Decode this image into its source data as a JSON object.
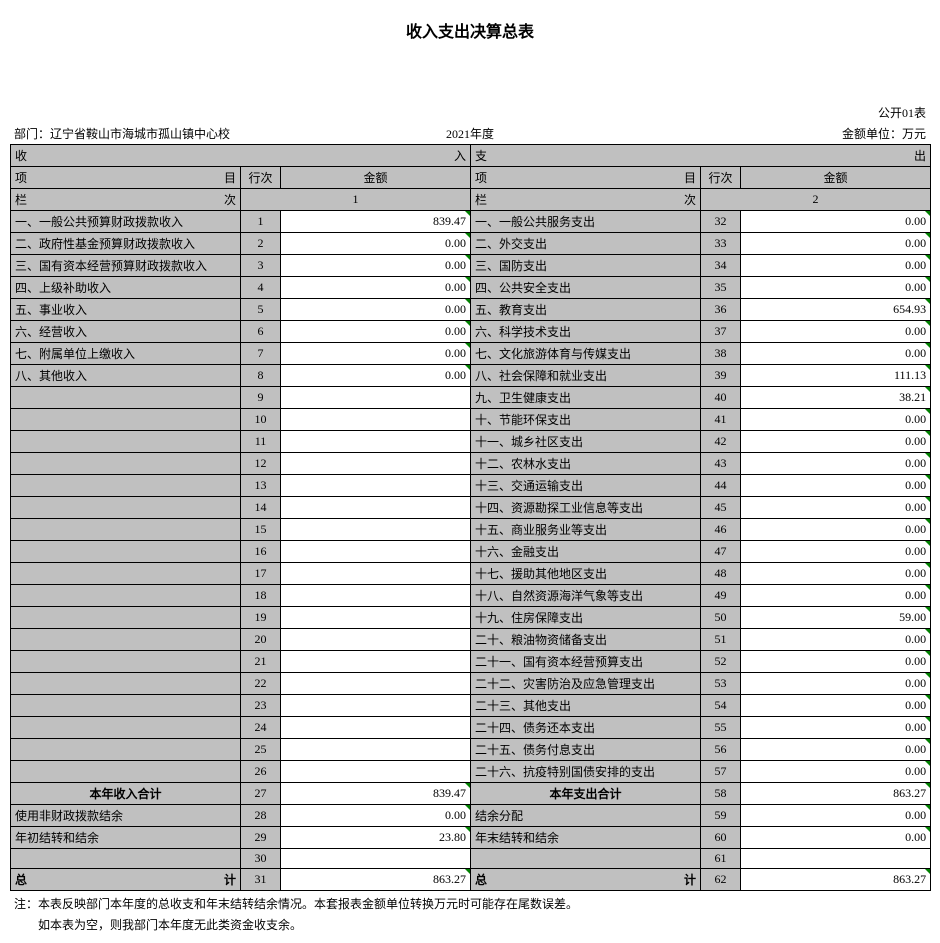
{
  "title": "收入支出决算总表",
  "meta": {
    "form_code": "公开01表",
    "dept_label": "部门：",
    "dept_name": "辽宁省鞍山市海城市孤山镇中心校",
    "year": "2021年度",
    "unit": "金额单位：万元"
  },
  "header": {
    "income_span": "收",
    "income_span_r": "入",
    "expense_span": "支",
    "expense_span_r": "出",
    "item": "项",
    "item_r": "目",
    "rownum": "行次",
    "amount": "金额",
    "col": "栏",
    "col_r": "次",
    "col_num_left": "1",
    "col_num_right": "2"
  },
  "income_rows": [
    {
      "label": "一、一般公共预算财政拨款收入",
      "n": "1",
      "v": "839.47"
    },
    {
      "label": "二、政府性基金预算财政拨款收入",
      "n": "2",
      "v": "0.00"
    },
    {
      "label": "三、国有资本经营预算财政拨款收入",
      "n": "3",
      "v": "0.00"
    },
    {
      "label": "四、上级补助收入",
      "n": "4",
      "v": "0.00"
    },
    {
      "label": "五、事业收入",
      "n": "5",
      "v": "0.00"
    },
    {
      "label": "六、经营收入",
      "n": "6",
      "v": "0.00"
    },
    {
      "label": "七、附属单位上缴收入",
      "n": "7",
      "v": "0.00"
    },
    {
      "label": "八、其他收入",
      "n": "8",
      "v": "0.00"
    },
    {
      "label": "",
      "n": "9",
      "v": ""
    },
    {
      "label": "",
      "n": "10",
      "v": ""
    },
    {
      "label": "",
      "n": "11",
      "v": ""
    },
    {
      "label": "",
      "n": "12",
      "v": ""
    },
    {
      "label": "",
      "n": "13",
      "v": ""
    },
    {
      "label": "",
      "n": "14",
      "v": ""
    },
    {
      "label": "",
      "n": "15",
      "v": ""
    },
    {
      "label": "",
      "n": "16",
      "v": ""
    },
    {
      "label": "",
      "n": "17",
      "v": ""
    },
    {
      "label": "",
      "n": "18",
      "v": ""
    },
    {
      "label": "",
      "n": "19",
      "v": ""
    },
    {
      "label": "",
      "n": "20",
      "v": ""
    },
    {
      "label": "",
      "n": "21",
      "v": ""
    },
    {
      "label": "",
      "n": "22",
      "v": ""
    },
    {
      "label": "",
      "n": "23",
      "v": ""
    },
    {
      "label": "",
      "n": "24",
      "v": ""
    },
    {
      "label": "",
      "n": "25",
      "v": ""
    },
    {
      "label": "",
      "n": "26",
      "v": ""
    }
  ],
  "expense_rows": [
    {
      "label": "一、一般公共服务支出",
      "n": "32",
      "v": "0.00"
    },
    {
      "label": "二、外交支出",
      "n": "33",
      "v": "0.00"
    },
    {
      "label": "三、国防支出",
      "n": "34",
      "v": "0.00"
    },
    {
      "label": "四、公共安全支出",
      "n": "35",
      "v": "0.00"
    },
    {
      "label": "五、教育支出",
      "n": "36",
      "v": "654.93"
    },
    {
      "label": "六、科学技术支出",
      "n": "37",
      "v": "0.00"
    },
    {
      "label": "七、文化旅游体育与传媒支出",
      "n": "38",
      "v": "0.00"
    },
    {
      "label": "八、社会保障和就业支出",
      "n": "39",
      "v": "111.13"
    },
    {
      "label": "九、卫生健康支出",
      "n": "40",
      "v": "38.21"
    },
    {
      "label": "十、节能环保支出",
      "n": "41",
      "v": "0.00"
    },
    {
      "label": "十一、城乡社区支出",
      "n": "42",
      "v": "0.00"
    },
    {
      "label": "十二、农林水支出",
      "n": "43",
      "v": "0.00"
    },
    {
      "label": "十三、交通运输支出",
      "n": "44",
      "v": "0.00"
    },
    {
      "label": "十四、资源勘探工业信息等支出",
      "n": "45",
      "v": "0.00"
    },
    {
      "label": "十五、商业服务业等支出",
      "n": "46",
      "v": "0.00"
    },
    {
      "label": "十六、金融支出",
      "n": "47",
      "v": "0.00"
    },
    {
      "label": "十七、援助其他地区支出",
      "n": "48",
      "v": "0.00"
    },
    {
      "label": "十八、自然资源海洋气象等支出",
      "n": "49",
      "v": "0.00"
    },
    {
      "label": "十九、住房保障支出",
      "n": "50",
      "v": "59.00"
    },
    {
      "label": "二十、粮油物资储备支出",
      "n": "51",
      "v": "0.00"
    },
    {
      "label": "二十一、国有资本经营预算支出",
      "n": "52",
      "v": "0.00"
    },
    {
      "label": "二十二、灾害防治及应急管理支出",
      "n": "53",
      "v": "0.00"
    },
    {
      "label": "二十三、其他支出",
      "n": "54",
      "v": "0.00"
    },
    {
      "label": "二十四、债务还本支出",
      "n": "55",
      "v": "0.00"
    },
    {
      "label": "二十五、债务付息支出",
      "n": "56",
      "v": "0.00"
    },
    {
      "label": "二十六、抗疫特别国债安排的支出",
      "n": "57",
      "v": "0.00"
    }
  ],
  "subtotal": {
    "income_label": "本年收入合计",
    "income_n": "27",
    "income_v": "839.47",
    "expense_label": "本年支出合计",
    "expense_n": "58",
    "expense_v": "863.27"
  },
  "extra_rows": [
    {
      "ll": "使用非财政拨款结余",
      "ln": "28",
      "lv": "0.00",
      "rl": "结余分配",
      "rn": "59",
      "rv": "0.00"
    },
    {
      "ll": "年初结转和结余",
      "ln": "29",
      "lv": "23.80",
      "rl": "年末结转和结余",
      "rn": "60",
      "rv": "0.00"
    },
    {
      "ll": "",
      "ln": "30",
      "lv": "",
      "rl": "",
      "rn": "61",
      "rv": ""
    }
  ],
  "total": {
    "label_l": "总",
    "label_r": "计",
    "income_n": "31",
    "income_v": "863.27",
    "expense_n": "62",
    "expense_v": "863.27"
  },
  "footnote1": "注：本表反映部门本年度的总收支和年末结转结余情况。本套报表金额单位转换万元时可能存在尾数误差。",
  "footnote2": "如本表为空，则我部门本年度无此类资金收支余。",
  "style": {
    "header_bg": "#c0c0c0",
    "cell_bg": "#ffffff",
    "border": "#000000",
    "corner": "#008000",
    "font_family": "SimSun",
    "body_font_size": 12,
    "title_font_size": 16
  }
}
